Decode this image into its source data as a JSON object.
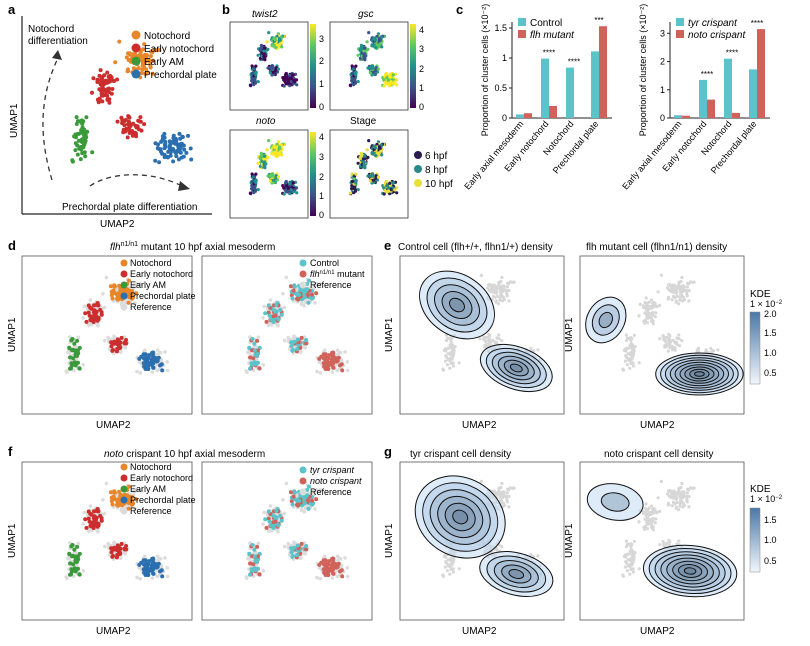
{
  "colors": {
    "notochord": "#e8862a",
    "early_notochord": "#cc2d2d",
    "early_am": "#3a9a3a",
    "prechordal_plate": "#2a6fb0",
    "reference": "#dcdcdc",
    "control": "#5bc3c9",
    "mutant": "#d0625a"
  },
  "panel_labels": {
    "a": "a",
    "b": "b",
    "c": "c",
    "d": "d",
    "e": "e",
    "f": "f",
    "g": "g"
  },
  "panel_a": {
    "annot_top": [
      "Notochord",
      "differentiation"
    ],
    "annot_bottom": "Prechordal plate differentiation",
    "legend": [
      "Notochord",
      "Early notochord",
      "Early AM",
      "Prechordal plate"
    ],
    "xlabel": "UMAP2",
    "ylabel": "UMAP1"
  },
  "panel_b": {
    "titles": [
      "twist2",
      "gsc",
      "noto",
      "Stage"
    ],
    "cbar_ticks": [
      [
        "3",
        "2",
        "1",
        "0"
      ],
      [
        "4",
        "3",
        "2",
        "1",
        "0"
      ],
      [
        "4",
        "3",
        "2",
        "1",
        "0"
      ]
    ],
    "stage_legend": [
      "6 hpf",
      "8 hpf",
      "10 hpf"
    ],
    "stage_colors": [
      "#2b1b4e",
      "#2a8a8a",
      "#e6e03a"
    ]
  },
  "panel_d": {
    "title_italic": "flh",
    "title_sup": "n1/n1",
    "title_rest": " mutant 10 hpf axial mesoderm",
    "legend_left": [
      "Notochord",
      "Early notochord",
      "Early AM",
      "Prechordal plate",
      "Reference"
    ],
    "legend_right": [
      "Control",
      "flh",
      "n1/n1",
      " mutant",
      "Reference"
    ],
    "xlabel": "UMAP2",
    "ylabel": "UMAP1"
  },
  "panel_e": {
    "title_left": "Control cell (flh+/+, flhn1/+) density",
    "title_right": "flh mutant cell (flhn1/n1) density",
    "kde_title": "KDE",
    "kde_scale": "1 × 10",
    "kde_scale_exp": "−2",
    "kde_ticks": [
      "2.0",
      "1.5",
      "1.0",
      "0.5"
    ],
    "xlabel": "UMAP2",
    "ylabel": "UMAP1"
  },
  "panel_f": {
    "title_italic": "noto",
    "title_rest": " crispant 10 hpf axial mesoderm",
    "legend_left": [
      "Notochord",
      "Early notochord",
      "Early AM",
      "Prechordal plate",
      "Reference"
    ],
    "legend_right": [
      "tyr crispant",
      "noto crispant",
      "Reference"
    ],
    "xlabel": "UMAP2",
    "ylabel": "UMAP1"
  },
  "panel_g": {
    "title_left": "tyr crispant cell density",
    "title_right": "noto crispant cell density",
    "kde_title": "KDE",
    "kde_scale": "1 × 10",
    "kde_scale_exp": "−2",
    "kde_ticks": [
      "1.5",
      "1.0",
      "0.5"
    ],
    "xlabel": "UMAP2",
    "ylabel": "UMAP1"
  },
  "chart_data": [
    {
      "type": "bar",
      "panel": "c-left",
      "categories": [
        "Early axial mesoderm",
        "Early notochord",
        "Notochord",
        "Prechordal plate"
      ],
      "series": [
        {
          "name": "Control",
          "values": [
            0.06,
            0.99,
            0.84,
            1.11
          ]
        },
        {
          "name": "flh mutant",
          "values": [
            0.08,
            0.2,
            0.0,
            1.53
          ]
        }
      ],
      "significance": [
        "",
        "****",
        "****",
        "***"
      ],
      "ylabel": "Proportion of cluster cells (×10⁻²)",
      "yticks": [
        0,
        0.5,
        1.0,
        1.5
      ],
      "ylim": [
        0,
        1.6
      ]
    },
    {
      "type": "bar",
      "panel": "c-right",
      "categories": [
        "Early axial mesoderm",
        "Early notochord",
        "Notochord",
        "Prechordal plate"
      ],
      "series": [
        {
          "name": "tyr crispant",
          "values": [
            0.1,
            1.35,
            2.1,
            1.72
          ]
        },
        {
          "name": "noto crispant",
          "values": [
            0.08,
            0.65,
            0.18,
            3.15
          ]
        }
      ],
      "significance": [
        "",
        "****",
        "****",
        "****"
      ],
      "ylabel": "Proportion of cluster cells (×10⁻²)",
      "yticks": [
        0,
        1,
        2,
        3
      ],
      "ylim": [
        0,
        3.4
      ]
    }
  ]
}
